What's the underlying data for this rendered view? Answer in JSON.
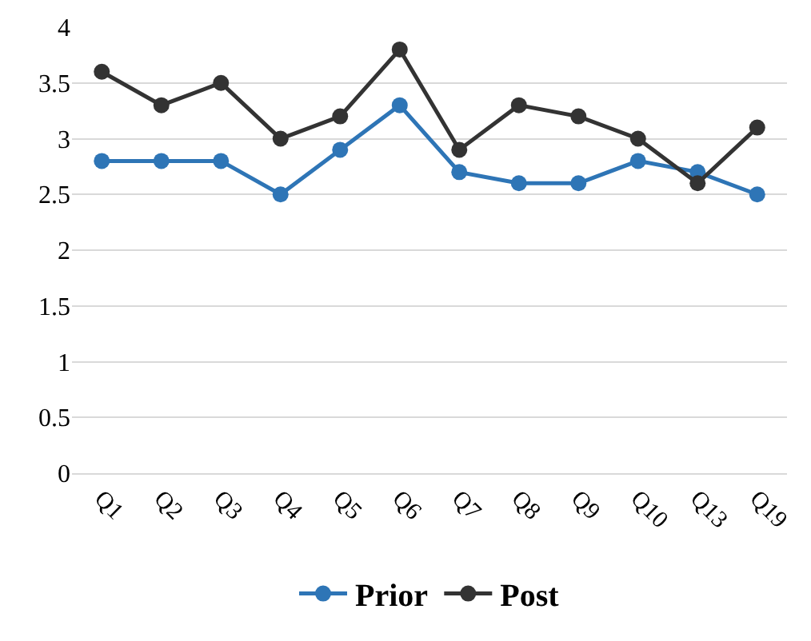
{
  "chart_data": {
    "type": "line",
    "categories": [
      "Q1",
      "Q2",
      "Q3",
      "Q4",
      "Q5",
      "Q6",
      "Q7",
      "Q8",
      "Q9",
      "Q10",
      "Q13",
      "Q19"
    ],
    "series": [
      {
        "name": "Prior",
        "color": "#2e75b6",
        "values": [
          2.8,
          2.8,
          2.8,
          2.5,
          2.9,
          3.3,
          2.7,
          2.6,
          2.6,
          2.8,
          2.7,
          2.5
        ]
      },
      {
        "name": "Post",
        "color": "#333333",
        "values": [
          3.6,
          3.3,
          3.5,
          3.0,
          3.2,
          3.8,
          2.9,
          3.3,
          3.2,
          3.0,
          2.6,
          3.1
        ]
      }
    ],
    "ylim": [
      0,
      4
    ],
    "yticks": [
      {
        "value": 0,
        "label": "0"
      },
      {
        "value": 0.5,
        "label": "0.5"
      },
      {
        "value": 1,
        "label": "1"
      },
      {
        "value": 1.5,
        "label": "1.5"
      },
      {
        "value": 2,
        "label": "2"
      },
      {
        "value": 2.5,
        "label": "2.5"
      },
      {
        "value": 3,
        "label": "3"
      },
      {
        "value": 3.5,
        "label": "3.5"
      },
      {
        "value": 4,
        "label": "4"
      }
    ],
    "grid": "y",
    "legend": "bottom",
    "marker": "circle",
    "line_style": "solid"
  }
}
